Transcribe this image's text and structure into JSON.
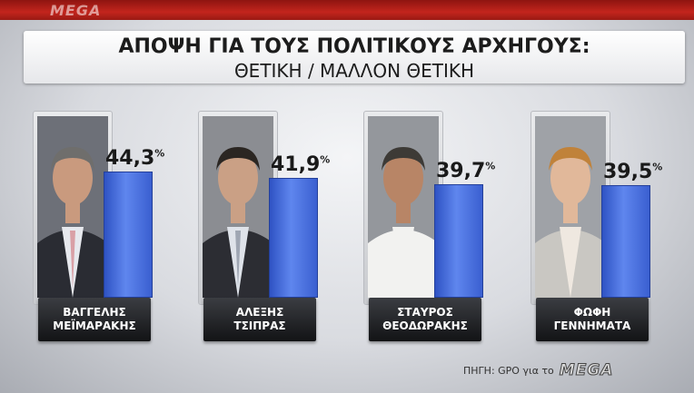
{
  "header": {
    "title": "ΑΠΟΨΗ ΓΙΑ ΤΟΥΣ ΠΟΛΙΤΙΚΟΥΣ ΑΡΧΗΓΟΥΣ:",
    "subtitle": "ΘΕΤΙΚΗ / ΜΑΛΛΟΝ ΘΕΤΙΚΗ"
  },
  "branding": {
    "top_logo": "MEGA"
  },
  "chart_data": {
    "type": "bar",
    "title": "ΑΠΟΨΗ ΓΙΑ ΤΟΥΣ ΠΟΛΙΤΙΚΟΥΣ ΑΡΧΗΓΟΥΣ:",
    "subtitle": "ΘΕΤΙΚΗ / ΜΑΛΛΟΝ ΘΕΤΙΚΗ",
    "unit": "%",
    "ylim": [
      0,
      50
    ],
    "categories": [
      [
        "ΒΑΓΓΕΛΗΣ",
        "ΜΕΪΜΑΡΑΚΗΣ"
      ],
      [
        "ΑΛΕΞΗΣ",
        "ΤΣΙΠΡΑΣ"
      ],
      [
        "ΣΤΑΥΡΟΣ",
        "ΘΕΟΔΩΡΑΚΗΣ"
      ],
      [
        "ΦΩΦΗ",
        "ΓΕΝΝΗΜΑΤΑ"
      ]
    ],
    "values": [
      44.3,
      41.9,
      39.7,
      39.5
    ],
    "value_labels": [
      "44,3",
      "41,9",
      "39,7",
      "39,5"
    ],
    "bar_color": "#4a6fe0"
  },
  "footer": {
    "source_text": "ΠΗΓΗ: GPO για το",
    "source_logo": "MEGA"
  }
}
